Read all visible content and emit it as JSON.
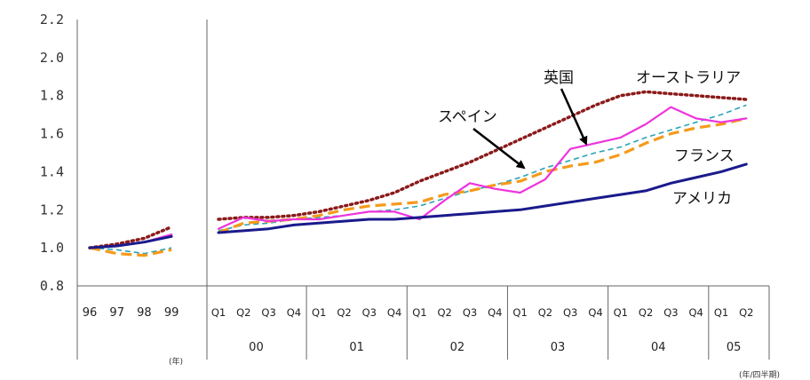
{
  "chart_data": {
    "type": "line",
    "ylim": [
      0.8,
      2.2
    ],
    "yticks": [
      "0.8",
      "1.0",
      "1.2",
      "1.4",
      "1.6",
      "1.8",
      "2.0",
      "2.2"
    ],
    "annual_x": [
      "96",
      "97",
      "98",
      "99"
    ],
    "annual_unit": "(年)",
    "quarter_x": [
      "Q1",
      "Q2",
      "Q3",
      "Q4",
      "Q1",
      "Q2",
      "Q3",
      "Q4",
      "Q1",
      "Q2",
      "Q3",
      "Q4",
      "Q1",
      "Q2",
      "Q3",
      "Q4",
      "Q1",
      "Q2",
      "Q3",
      "Q4",
      "Q1",
      "Q2"
    ],
    "quarter_years": [
      "00",
      "01",
      "02",
      "03",
      "04",
      "05"
    ],
    "quarter_unit": "(年/四半期)",
    "annotations": {
      "spain": "スペイン",
      "uk": "英国",
      "australia": "オーストラリア",
      "france": "フランス",
      "usa": "アメリカ"
    },
    "series": [
      {
        "name": "オーストラリア",
        "color": "#8b1a1a",
        "style": "dotted",
        "annual": [
          1.0,
          1.02,
          1.05,
          1.11
        ],
        "quarterly": [
          1.15,
          1.16,
          1.16,
          1.17,
          1.19,
          1.22,
          1.25,
          1.29,
          1.35,
          1.4,
          1.45,
          1.51,
          1.57,
          1.63,
          1.69,
          1.75,
          1.8,
          1.82,
          1.81,
          1.8,
          1.79,
          1.78
        ]
      },
      {
        "name": "スペイン",
        "color": "#2ba3b5",
        "style": "dashed-thin",
        "annual": [
          1.0,
          0.99,
          0.97,
          1.0
        ],
        "quarterly": [
          1.09,
          1.12,
          1.13,
          1.15,
          1.16,
          1.17,
          1.19,
          1.2,
          1.22,
          1.26,
          1.3,
          1.33,
          1.37,
          1.42,
          1.46,
          1.5,
          1.53,
          1.58,
          1.62,
          1.66,
          1.7,
          1.75
        ]
      },
      {
        "name": "フランス",
        "color": "#f59a1b",
        "style": "dashed-thick",
        "annual": [
          1.0,
          0.97,
          0.96,
          0.99
        ],
        "quarterly": [
          1.08,
          1.13,
          1.14,
          1.15,
          1.17,
          1.2,
          1.22,
          1.23,
          1.24,
          1.28,
          1.3,
          1.33,
          1.35,
          1.4,
          1.43,
          1.45,
          1.49,
          1.55,
          1.6,
          1.63,
          1.65,
          1.68
        ]
      },
      {
        "name": "英国",
        "color": "#ee33dd",
        "style": "solid",
        "annual": [
          1.0,
          1.01,
          1.03,
          1.07
        ],
        "quarterly": [
          1.1,
          1.16,
          1.14,
          1.15,
          1.15,
          1.17,
          1.19,
          1.19,
          1.15,
          1.25,
          1.34,
          1.31,
          1.29,
          1.36,
          1.52,
          1.55,
          1.58,
          1.65,
          1.74,
          1.68,
          1.66,
          1.68
        ]
      },
      {
        "name": "アメリカ",
        "color": "#1a1a8c",
        "style": "solid-thick",
        "annual": [
          1.0,
          1.01,
          1.03,
          1.06
        ],
        "quarterly": [
          1.08,
          1.09,
          1.1,
          1.12,
          1.13,
          1.14,
          1.15,
          1.15,
          1.16,
          1.17,
          1.18,
          1.19,
          1.2,
          1.22,
          1.24,
          1.26,
          1.28,
          1.3,
          1.34,
          1.37,
          1.4,
          1.44
        ]
      }
    ]
  }
}
